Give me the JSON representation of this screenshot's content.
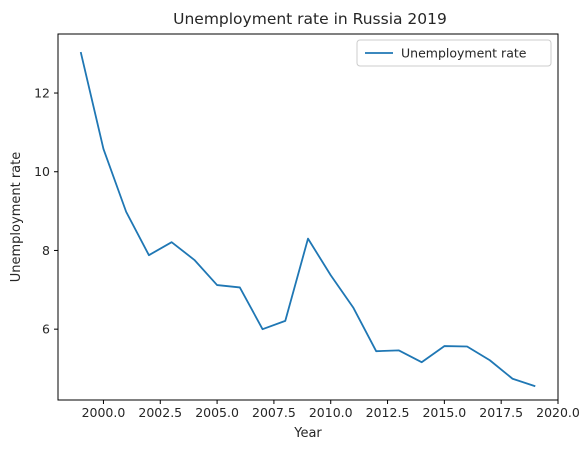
{
  "chart_data": {
    "type": "line",
    "title": "Unemployment rate in Russia 2019",
    "xlabel": "Year",
    "ylabel": "Unemployment rate",
    "xlim": [
      1998.0,
      2020.0
    ],
    "ylim": [
      4.2,
      13.5
    ],
    "xticks": [
      2000.0,
      2002.5,
      2005.0,
      2007.5,
      2010.0,
      2012.5,
      2015.0,
      2017.5,
      2020.0
    ],
    "xtick_labels": [
      "2000.0",
      "2002.5",
      "2005.0",
      "2007.5",
      "2010.0",
      "2012.5",
      "2015.0",
      "2017.5",
      "2020.0"
    ],
    "yticks": [
      6,
      8,
      10,
      12
    ],
    "ytick_labels": [
      "6",
      "8",
      "10",
      "12"
    ],
    "grid": false,
    "legend": {
      "placement": "top-right"
    },
    "series": [
      {
        "name": "Unemployment rate",
        "color": "#1f77b4",
        "x": [
          1999,
          2000,
          2001,
          2002,
          2003,
          2004,
          2005,
          2006,
          2007,
          2008,
          2009,
          2010,
          2011,
          2012,
          2013,
          2014,
          2015,
          2016,
          2017,
          2018,
          2019
        ],
        "y": [
          13.04,
          10.58,
          8.98,
          7.88,
          8.21,
          7.76,
          7.12,
          7.06,
          6.0,
          6.21,
          8.3,
          7.37,
          6.54,
          5.44,
          5.46,
          5.16,
          5.57,
          5.56,
          5.21,
          4.74,
          4.55
        ]
      }
    ]
  }
}
